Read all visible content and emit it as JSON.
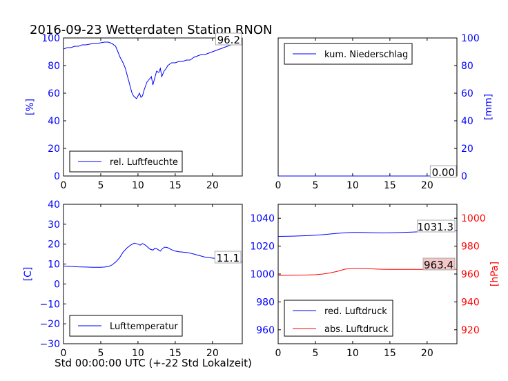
{
  "figure": {
    "title": "2016-09-23 Wetterdaten Station RNON",
    "xlabel": "Std 00:00:00 UTC (+-22 Std Lokalzeit)"
  },
  "colors": {
    "blue": "#0000ff",
    "red": "#ff0000",
    "black": "#000000",
    "annotation_fill_red": "#f4c7c7"
  },
  "chart_data": [
    {
      "id": "humidity",
      "type": "line",
      "xlim": [
        0,
        24
      ],
      "ylim": [
        0,
        100
      ],
      "xticks": [
        0,
        5,
        10,
        15,
        20
      ],
      "yticks": [
        0,
        20,
        40,
        60,
        80,
        100
      ],
      "ylabel": "[%]",
      "legend_position": "lower-left",
      "annotation": "96.2",
      "series": [
        {
          "name": "rel. Luftfeuchte",
          "color": "#0000ff",
          "axis": "left",
          "x": [
            0,
            0.5,
            1,
            1.5,
            2,
            2.5,
            3,
            3.5,
            4,
            4.5,
            5,
            5.5,
            6,
            6.5,
            7,
            7.3,
            7.6,
            8,
            8.3,
            8.6,
            8.8,
            9,
            9.2,
            9.4,
            9.6,
            9.8,
            10,
            10.2,
            10.4,
            10.6,
            10.8,
            11,
            11.2,
            11.5,
            11.8,
            12,
            12.2,
            12.5,
            12.8,
            13,
            13.2,
            13.5,
            13.8,
            14,
            14.5,
            15,
            15.5,
            16,
            16.5,
            17,
            17.5,
            18,
            18.5,
            19,
            19.5,
            20,
            20.5,
            21,
            21.5,
            22,
            22.5,
            23,
            23.5,
            24
          ],
          "y": [
            92,
            93,
            93,
            94,
            94,
            95,
            95,
            95.5,
            96,
            96,
            96.5,
            97,
            97,
            96,
            94,
            90,
            86,
            82,
            78,
            72,
            68,
            64,
            60,
            58,
            57,
            56,
            58,
            60,
            57,
            58,
            62,
            65,
            68,
            70,
            72,
            66,
            70,
            76,
            75,
            78,
            72,
            76,
            78,
            80,
            82,
            82,
            83,
            83,
            84,
            84,
            86,
            87,
            88,
            88,
            89,
            90,
            91,
            92,
            93,
            94,
            95,
            95.5,
            96,
            96.2
          ]
        }
      ]
    },
    {
      "id": "precipitation",
      "type": "line",
      "xlim": [
        0,
        24
      ],
      "ylim": [
        0,
        100
      ],
      "xticks": [
        0,
        5,
        10,
        15,
        20
      ],
      "yticks": [
        0,
        20,
        40,
        60,
        80,
        100
      ],
      "ylabel": "[mm]",
      "y_axis_side": "right",
      "legend_position": "top-left",
      "annotation": "0.00",
      "series": [
        {
          "name": "kum. Niederschlag",
          "color": "#0000ff",
          "axis": "right",
          "x": [
            0,
            24
          ],
          "y": [
            0,
            0
          ]
        }
      ]
    },
    {
      "id": "temperature",
      "type": "line",
      "xlim": [
        0,
        24
      ],
      "ylim": [
        -30,
        40
      ],
      "xticks": [
        0,
        5,
        10,
        15,
        20
      ],
      "yticks": [
        -30,
        -20,
        -10,
        0,
        10,
        20,
        30,
        40
      ],
      "ylabel": "[C]",
      "legend_position": "lower-left",
      "annotation": "11.1",
      "series": [
        {
          "name": "Lufttemperatur",
          "color": "#0000ff",
          "axis": "left",
          "x": [
            0,
            1,
            2,
            3,
            4,
            5,
            5.5,
            6,
            6.5,
            7,
            7.5,
            8,
            8.5,
            9,
            9.5,
            10,
            10.3,
            10.6,
            11,
            11.3,
            11.6,
            12,
            12.3,
            12.6,
            13,
            13.3,
            13.6,
            14,
            14.5,
            15,
            15.5,
            16,
            16.5,
            17,
            17.5,
            18,
            18.5,
            19,
            19.5,
            20,
            20.5,
            21,
            21.5,
            22,
            22.5,
            23,
            23.5,
            24
          ],
          "y": [
            9,
            8.8,
            8.6,
            8.5,
            8.4,
            8.4,
            8.5,
            8.7,
            9.5,
            11,
            13,
            16,
            18,
            19.5,
            20.5,
            20,
            19.5,
            20.3,
            19.5,
            18.5,
            17.5,
            17,
            18,
            17.5,
            16.5,
            17.8,
            18.5,
            18.2,
            17.2,
            16.5,
            16.2,
            16,
            15.8,
            15.5,
            15,
            14.5,
            14,
            13.5,
            13.2,
            13,
            12.8,
            12.5,
            12.2,
            12,
            11.8,
            11.5,
            11.3,
            11.1
          ]
        }
      ]
    },
    {
      "id": "pressure",
      "type": "line",
      "xlim": [
        0,
        24
      ],
      "ylim": [
        950,
        1050
      ],
      "ylim_right": [
        910,
        1010
      ],
      "xticks": [
        0,
        5,
        10,
        15,
        20
      ],
      "yticks": [
        960,
        980,
        1000,
        1020,
        1040
      ],
      "yticks_right": [
        920,
        940,
        960,
        980,
        1000
      ],
      "ylabel_right": "[hPa]",
      "legend_position": "lower-left",
      "annotations": [
        "1031.3",
        "963.4"
      ],
      "series": [
        {
          "name": "red. Luftdruck",
          "color": "#0000ff",
          "axis": "left",
          "x": [
            0,
            2,
            4,
            5,
            6,
            7,
            8,
            9,
            10,
            11,
            12,
            13,
            14,
            15,
            16,
            17,
            18,
            19,
            20,
            21,
            22,
            23,
            24
          ],
          "y": [
            1027,
            1027.2,
            1027.5,
            1027.8,
            1028.2,
            1028.7,
            1029.2,
            1029.6,
            1029.8,
            1029.8,
            1029.7,
            1029.6,
            1029.5,
            1029.6,
            1029.7,
            1029.9,
            1030.1,
            1030.3,
            1030.6,
            1030.8,
            1031,
            1031.2,
            1031.3
          ]
        },
        {
          "name": "abs. Luftdruck",
          "color": "#ff0000",
          "axis": "right",
          "x": [
            0,
            2,
            4,
            5,
            6,
            7,
            8,
            9,
            10,
            11,
            12,
            13,
            14,
            15,
            16,
            17,
            18,
            19,
            20,
            21,
            22,
            23,
            24
          ],
          "y": [
            959,
            959.1,
            959.3,
            959.5,
            960,
            960.8,
            962,
            963.5,
            964,
            964,
            963.8,
            963.6,
            963.4,
            963.3,
            963.3,
            963.3,
            963.3,
            963.3,
            963.3,
            963.4,
            963.4,
            963.4,
            963.4
          ]
        }
      ]
    }
  ]
}
